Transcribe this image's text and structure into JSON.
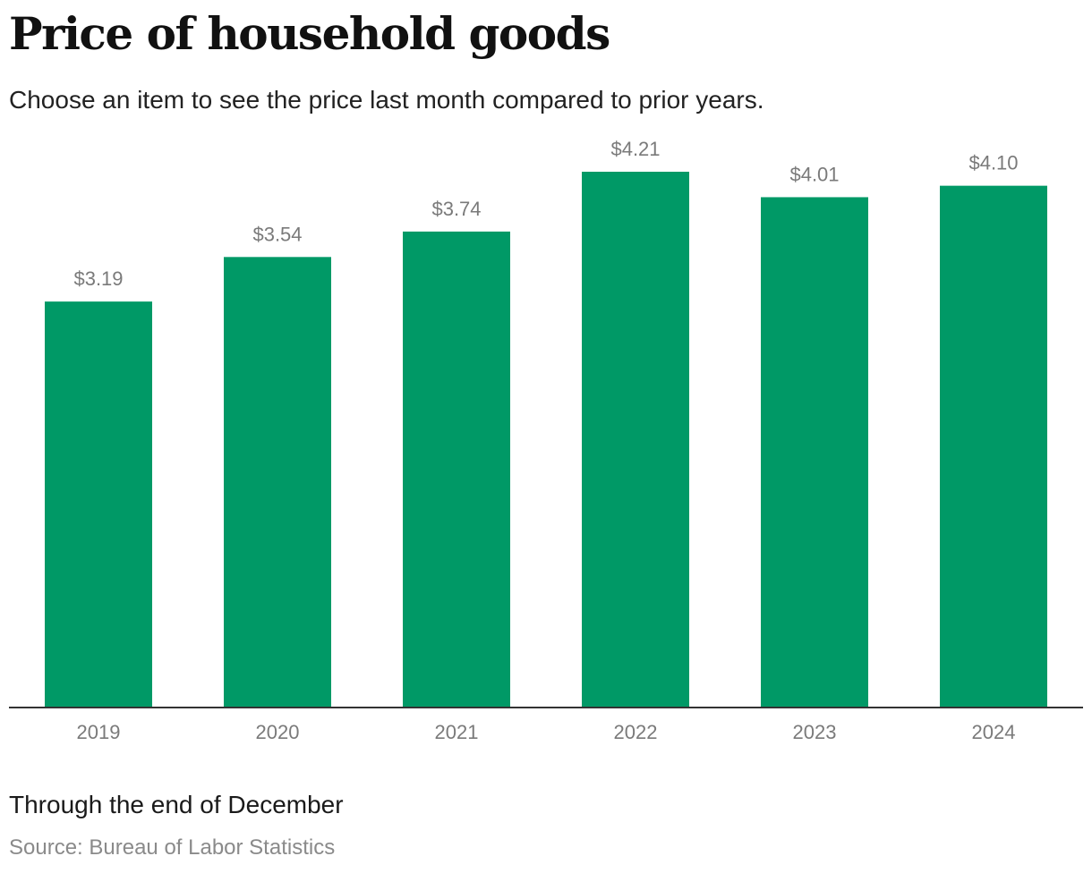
{
  "header": {
    "title": "Price of household goods",
    "subtitle": "Choose an item to see the price last month compared to prior years."
  },
  "footer": {
    "note": "Through the end of December",
    "source": "Source: Bureau of Labor Statistics"
  },
  "colors": {
    "bar": "#009966",
    "axis": "#333333",
    "label": "#7a7a7a"
  },
  "chart_data": {
    "type": "bar",
    "categories": [
      "2019",
      "2020",
      "2021",
      "2022",
      "2023",
      "2024"
    ],
    "values": [
      3.19,
      3.54,
      3.74,
      4.21,
      4.01,
      4.1
    ],
    "data_labels": [
      "$3.19",
      "$3.54",
      "$3.74",
      "$4.21",
      "$4.01",
      "$4.10"
    ],
    "title": "Price of household goods",
    "xlabel": "",
    "ylabel": "",
    "ylim": [
      0,
      4.21
    ],
    "grid": false,
    "legend": "none"
  }
}
